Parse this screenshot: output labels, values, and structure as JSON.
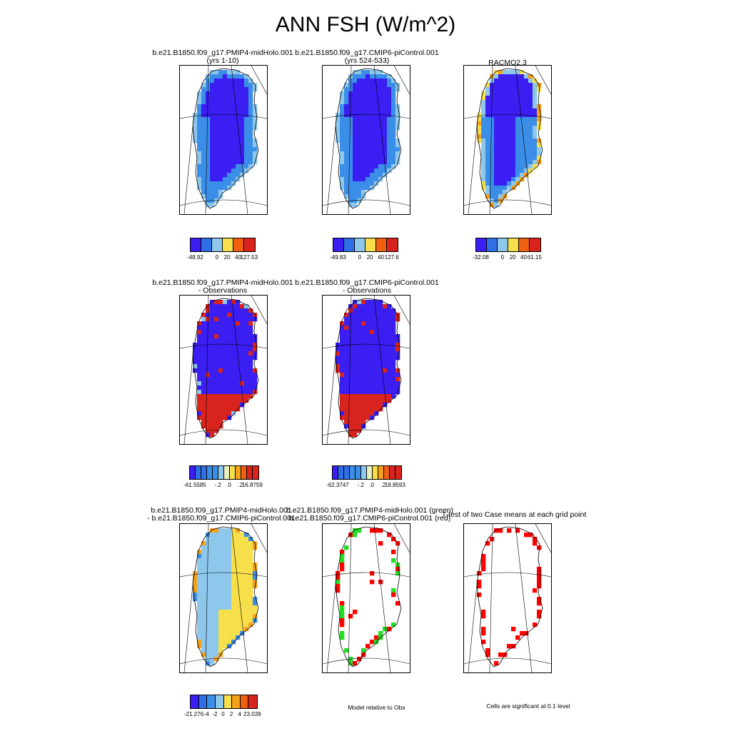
{
  "title": "ANN FSH (W/m^2)",
  "colors": {
    "deep_blue": "#3a1ef2",
    "blue": "#2f6fe6",
    "mid_blue": "#3b8ee8",
    "light_blue": "#8dc8ec",
    "pale": "#e8f0c0",
    "yellow": "#f6df4a",
    "orange": "#f5a21a",
    "dark_orange": "#f06010",
    "red": "#d9241e",
    "green": "#22dd22",
    "sig_red": "#ff0000"
  },
  "chart_data": [
    {
      "type": "heatmap",
      "title_line1": "b.e21.B1850.f09_g17.PMIP4-midHolo.001",
      "title_line2": "(yrs 1-10)",
      "colorbar_ticks": [
        "-48.92",
        "0",
        "20",
        "40",
        "127.53"
      ],
      "colorbar_colors": [
        "deep_blue",
        "blue",
        "light_blue",
        "yellow",
        "dark_orange",
        "red"
      ],
      "pattern": "model"
    },
    {
      "type": "heatmap",
      "title_line1": "b.e21.B1850.f09_g17.CMIP6-piControl.001",
      "title_line2": "(yrs 524-533)",
      "colorbar_ticks": [
        "-49.83",
        "0",
        "20",
        "40",
        "127.6"
      ],
      "colorbar_colors": [
        "deep_blue",
        "blue",
        "light_blue",
        "yellow",
        "dark_orange",
        "red"
      ],
      "pattern": "model"
    },
    {
      "type": "heatmap",
      "title_line1": "RACMO2.3",
      "title_line2": "",
      "colorbar_ticks": [
        "-32.08",
        "0",
        "20",
        "40",
        "61.15"
      ],
      "colorbar_colors": [
        "deep_blue",
        "blue",
        "light_blue",
        "yellow",
        "dark_orange",
        "red"
      ],
      "pattern": "obs"
    },
    {
      "type": "heatmap",
      "title_line1": "b.e21.B1850.f09_g17.PMIP4-midHolo.001",
      "title_line2": "- Observations",
      "colorbar_ticks": [
        "-61.5585",
        "-.2",
        ".0",
        ".2",
        "16.8759"
      ],
      "colorbar_colors": [
        "deep_blue",
        "blue",
        "blue",
        "mid_blue",
        "mid_blue",
        "light_blue",
        "pale",
        "yellow",
        "orange",
        "dark_orange",
        "red",
        "red"
      ],
      "pattern": "diff"
    },
    {
      "type": "heatmap",
      "title_line1": "b.e21.B1850.f09_g17.CMIP6-piControl.001",
      "title_line2": "- Observations",
      "colorbar_ticks": [
        "-62.3747",
        "-.2",
        ".0",
        ".2",
        "18.8593"
      ],
      "colorbar_colors": [
        "deep_blue",
        "blue",
        "blue",
        "mid_blue",
        "mid_blue",
        "light_blue",
        "pale",
        "yellow",
        "orange",
        "dark_orange",
        "red",
        "red"
      ],
      "pattern": "diff"
    },
    {
      "type": "heatmap",
      "title_line1": "b.e21.B1850.f09_g17.PMIP4-midHolo.001",
      "title_line2": "- b.e21.B1850.f09_g17.CMIP6-piControl.001",
      "colorbar_ticks": [
        "-21.276",
        "-4",
        "-2",
        "0",
        "2",
        "4",
        "23.039"
      ],
      "colorbar_colors": [
        "deep_blue",
        "blue",
        "mid_blue",
        "light_blue",
        "yellow",
        "orange",
        "dark_orange",
        "red"
      ],
      "pattern": "casediff"
    },
    {
      "type": "heatmap",
      "title_line1": "b.e21.B1850.f09_g17.PMIP4-midHolo.001 (green)",
      "title_line2": "b.e21.B1850.f09_g17.CMIP6-piControl.001 (red)",
      "note": "Model relative to Obs",
      "pattern": "greenred"
    },
    {
      "type": "heatmap",
      "title_line1": "T-test of two Case means at each grid point",
      "title_line2": "",
      "note": "Cells are significant at 0.1 level",
      "pattern": "ttest"
    }
  ]
}
